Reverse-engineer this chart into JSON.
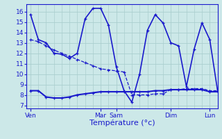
{
  "background_color": "#cce8e8",
  "grid_color": "#aacece",
  "line_color": "#1a1acc",
  "xlabel": "Température (°c)",
  "ylim": [
    6.7,
    16.7
  ],
  "yticks": [
    7,
    8,
    9,
    10,
    11,
    12,
    13,
    14,
    15,
    16
  ],
  "xlim": [
    -6,
    288
  ],
  "day_positions": [
    0,
    108,
    132,
    216,
    276
  ],
  "day_labels": [
    "Ven",
    "Mar",
    "Sam",
    "Dim",
    "Lun"
  ],
  "line1_x": [
    0,
    12,
    24,
    36,
    48,
    60,
    72,
    84,
    96,
    108,
    120,
    132,
    144,
    156,
    168,
    180,
    192,
    204,
    216,
    228,
    240,
    252,
    264,
    276,
    288
  ],
  "line1_y": [
    15.7,
    13.3,
    13.0,
    12.0,
    11.9,
    11.5,
    12.0,
    15.3,
    16.3,
    16.3,
    14.7,
    10.7,
    8.4,
    7.3,
    10.0,
    14.2,
    15.7,
    14.9,
    13.0,
    12.7,
    8.8,
    12.4,
    14.9,
    13.3,
    8.4
  ],
  "line2_x": [
    0,
    12,
    24,
    36,
    48,
    60,
    72,
    84,
    96,
    108,
    120,
    132,
    144,
    156,
    168,
    180,
    192,
    204,
    216,
    228,
    240,
    252,
    264,
    276,
    288
  ],
  "line2_y": [
    8.4,
    8.4,
    7.8,
    7.7,
    7.7,
    7.8,
    8.0,
    8.1,
    8.2,
    8.3,
    8.3,
    8.3,
    8.3,
    8.3,
    8.3,
    8.3,
    8.4,
    8.4,
    8.5,
    8.5,
    8.5,
    8.5,
    8.5,
    8.3,
    8.3
  ],
  "line3_x": [
    0,
    12,
    24,
    36,
    48,
    60,
    72,
    84,
    96,
    108,
    120,
    132,
    144,
    156,
    168,
    180,
    192,
    204,
    216,
    228,
    240,
    252,
    264,
    276,
    288
  ],
  "line3_y": [
    13.3,
    13.1,
    12.7,
    12.3,
    12.0,
    11.7,
    11.4,
    11.1,
    10.8,
    10.5,
    10.4,
    10.3,
    10.2,
    8.0,
    8.0,
    8.0,
    8.1,
    8.1,
    8.5,
    8.5,
    8.6,
    8.6,
    8.6,
    8.4,
    8.4
  ]
}
